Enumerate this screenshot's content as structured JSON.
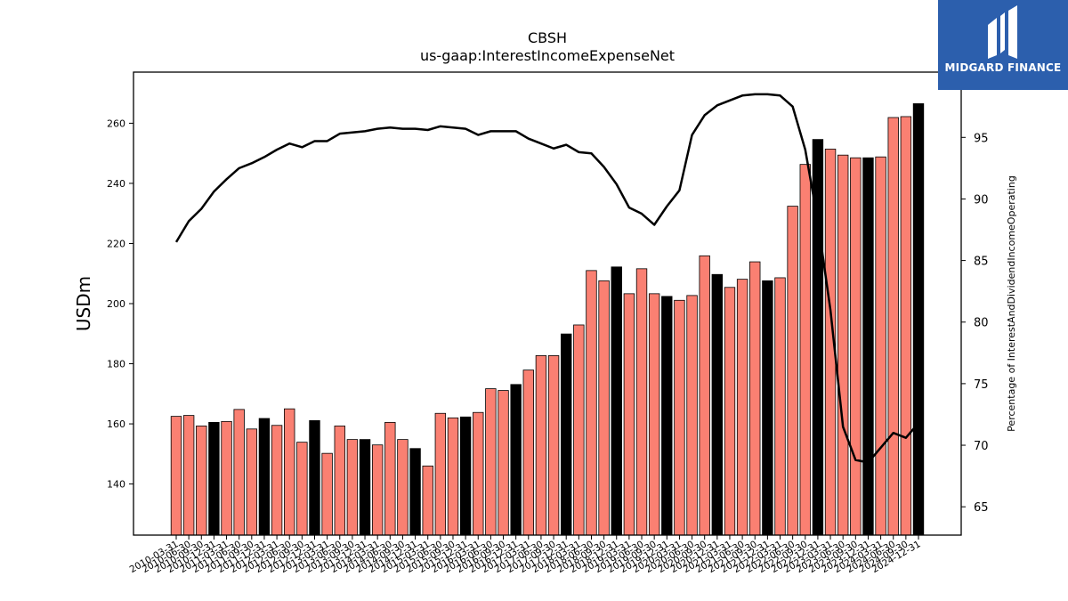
{
  "colors": {
    "accent": "#fa8072",
    "highlight": "#000000",
    "line": "#000000",
    "logo_bg": "#2c5fad"
  },
  "logo": {
    "text": "MIDGARD FINANCE",
    "icon": "midgard-m-icon"
  },
  "chart_data": {
    "type": "bar+line",
    "title": "CBSH",
    "subtitle": "us-gaap:InterestIncomeExpenseNet",
    "ylabel": "USDm",
    "ylabel_right": "Percentage of InterestAndDividendIncomeOperating",
    "ylim": [
      123,
      277
    ],
    "ylim_right": [
      62.7,
      100.3
    ],
    "yticks": [
      140,
      160,
      180,
      200,
      220,
      240,
      260
    ],
    "yticks_right": [
      65,
      70,
      75,
      80,
      85,
      90,
      95
    ],
    "categories": [
      "2010-03-31",
      "2010-06-30",
      "2010-09-30",
      "2010-12-31",
      "2011-03-31",
      "2011-06-30",
      "2011-09-30",
      "2011-12-31",
      "2012-03-31",
      "2012-06-30",
      "2012-09-30",
      "2012-12-31",
      "2013-03-31",
      "2013-06-30",
      "2013-09-30",
      "2013-12-31",
      "2014-03-31",
      "2014-06-30",
      "2014-09-30",
      "2014-12-31",
      "2015-03-31",
      "2015-06-30",
      "2015-09-30",
      "2015-12-31",
      "2016-03-31",
      "2016-06-30",
      "2016-09-30",
      "2016-12-31",
      "2017-03-31",
      "2017-06-30",
      "2017-09-30",
      "2017-12-31",
      "2018-03-31",
      "2018-06-30",
      "2018-09-30",
      "2018-12-31",
      "2019-03-31",
      "2019-06-30",
      "2019-09-30",
      "2019-12-31",
      "2020-03-31",
      "2020-06-30",
      "2020-09-30",
      "2020-12-31",
      "2021-03-31",
      "2021-06-30",
      "2021-09-30",
      "2021-12-31",
      "2022-03-31",
      "2022-06-30",
      "2022-09-30",
      "2022-12-31",
      "2023-03-31",
      "2023-06-30",
      "2023-09-30",
      "2023-12-31",
      "2024-03-31",
      "2024-06-30",
      "2024-09-30",
      "2024-12-31"
    ],
    "series": [
      {
        "type": "bar",
        "values": [
          162.5,
          162.8,
          159.3,
          160.5,
          160.8,
          164.8,
          158.3,
          161.8,
          159.5,
          165.0,
          153.9,
          161.1,
          150.2,
          159.3,
          154.8,
          154.8,
          153.0,
          160.5,
          154.8,
          151.8,
          146.0,
          163.5,
          162.0,
          162.3,
          163.8,
          171.7,
          171.1,
          173.1,
          177.9,
          182.7,
          182.7,
          189.9,
          192.9,
          211.0,
          207.6,
          212.2,
          203.3,
          211.6,
          203.3,
          202.4,
          201.1,
          202.7,
          215.9,
          209.7,
          205.4,
          208.1,
          213.9,
          207.6,
          208.6,
          232.4,
          246.3,
          254.6,
          251.4,
          249.4,
          248.5,
          248.5,
          248.8,
          261.9,
          262.2,
          266.5
        ],
        "highlight": [
          false,
          false,
          false,
          true,
          false,
          false,
          false,
          true,
          false,
          false,
          false,
          true,
          false,
          false,
          false,
          true,
          false,
          false,
          false,
          true,
          false,
          false,
          false,
          true,
          false,
          false,
          false,
          true,
          false,
          false,
          false,
          true,
          false,
          false,
          false,
          true,
          false,
          false,
          false,
          true,
          false,
          false,
          false,
          true,
          false,
          false,
          false,
          true,
          false,
          false,
          false,
          true,
          false,
          false,
          false,
          true,
          false,
          false,
          false,
          true
        ]
      },
      {
        "type": "line",
        "axis": "right",
        "values": [
          86.5,
          88.2,
          89.2,
          90.6,
          91.6,
          92.5,
          92.9,
          93.4,
          94.0,
          94.5,
          94.2,
          94.7,
          94.7,
          95.3,
          95.4,
          95.5,
          95.7,
          95.8,
          95.7,
          95.7,
          95.6,
          95.9,
          95.8,
          95.7,
          95.2,
          95.5,
          95.5,
          95.5,
          94.9,
          94.5,
          94.1,
          94.4,
          93.8,
          93.7,
          92.6,
          91.2,
          89.3,
          88.8,
          87.9,
          89.4,
          90.7,
          95.2,
          96.8,
          97.6,
          98.0,
          98.4,
          98.5,
          98.5,
          98.4,
          97.5,
          94.0,
          88.2,
          81.0,
          71.5,
          68.8,
          68.6,
          69.8,
          71.0,
          70.6,
          71.8
        ]
      }
    ]
  }
}
